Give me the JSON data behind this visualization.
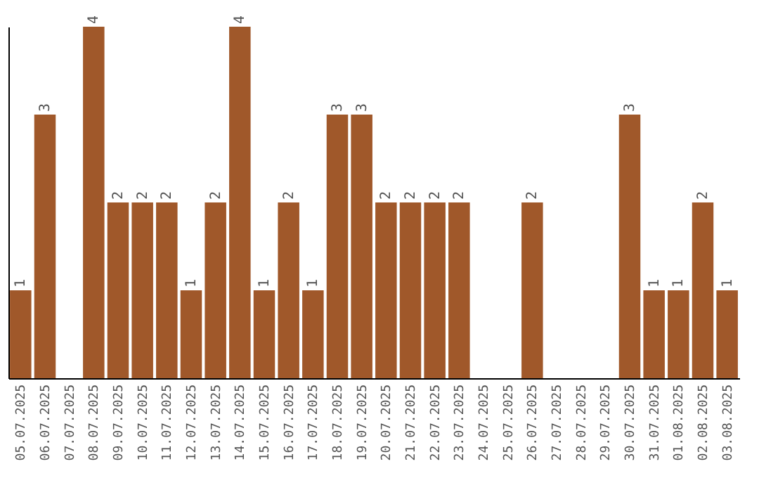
{
  "chart_data": {
    "type": "bar",
    "categories": [
      "05.07.2025",
      "06.07.2025",
      "07.07.2025",
      "08.07.2025",
      "09.07.2025",
      "10.07.2025",
      "11.07.2025",
      "12.07.2025",
      "13.07.2025",
      "14.07.2025",
      "15.07.2025",
      "16.07.2025",
      "17.07.2025",
      "18.07.2025",
      "19.07.2025",
      "20.07.2025",
      "21.07.2025",
      "22.07.2025",
      "23.07.2025",
      "24.07.2025",
      "25.07.2025",
      "26.07.2025",
      "27.07.2025",
      "28.07.2025",
      "29.07.2025",
      "30.07.2025",
      "31.07.2025",
      "01.08.2025",
      "02.08.2025",
      "03.08.2025"
    ],
    "values": [
      1,
      3,
      0,
      4,
      2,
      2,
      2,
      1,
      2,
      4,
      1,
      2,
      1,
      3,
      3,
      2,
      2,
      2,
      2,
      0,
      0,
      2,
      0,
      0,
      0,
      3,
      1,
      1,
      2,
      1
    ],
    "value_labels": [
      "1",
      "3",
      null,
      "4",
      "2",
      "2",
      "2",
      "1",
      "2",
      "4",
      "1",
      "2",
      "1",
      "3",
      "3",
      "2",
      "2",
      "2",
      "2",
      null,
      null,
      "2",
      null,
      null,
      null,
      "3",
      "1",
      "1",
      "2",
      "1"
    ],
    "color": "#a0582a",
    "tick_labels": "x",
    "grid": false
  }
}
